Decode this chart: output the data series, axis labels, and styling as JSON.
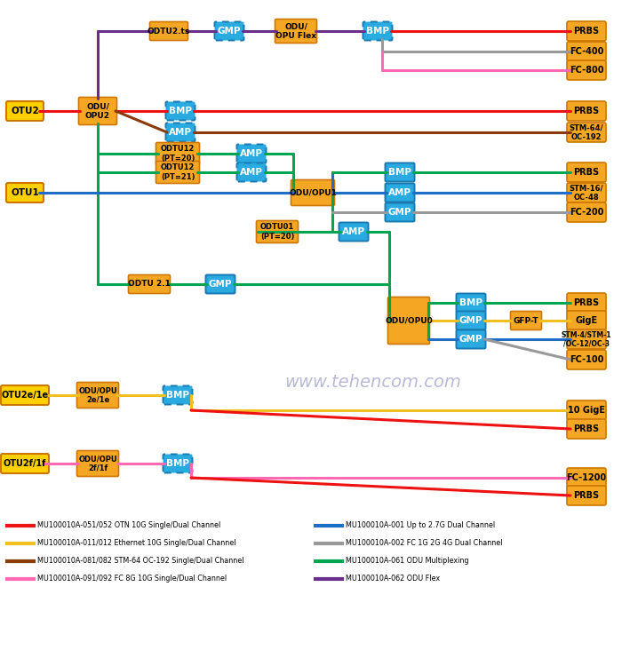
{
  "watermark": "www.tehencom.com",
  "colors": {
    "red": "#EE1111",
    "orange_box": "#F5A623",
    "orange_dark": "#CC7700",
    "blue_box": "#29ABE2",
    "blue_dark": "#1A7AB0",
    "yellow_line": "#F0C020",
    "brown": "#8B3A0A",
    "pink": "#FF69B4",
    "blue_line": "#1E6EC8",
    "gray": "#999999",
    "green": "#00A550",
    "purple": "#6B2D8B",
    "white": "#FFFFFF",
    "black": "#000000"
  },
  "legend": [
    {
      "color": "#EE1111",
      "label": "MU100010A-051/052 OTN 10G Single/Dual Channel"
    },
    {
      "color": "#F0C020",
      "label": "MU100010A-011/012 Ethernet 10G Single/Dual Channel"
    },
    {
      "color": "#8B3A0A",
      "label": "MU100010A-081/082 STM-64 OC-192 Single/Dual Channel"
    },
    {
      "color": "#FF69B4",
      "label": "MU100010A-091/092 FC 8G 10G Single/Dual Channel"
    },
    {
      "color": "#1E6EC8",
      "label": "MU100010A-001 Up to 2.7G Dual Channel"
    },
    {
      "color": "#999999",
      "label": "MU100010A-002 FC 1G 2G 4G Dual Channel"
    },
    {
      "color": "#00A550",
      "label": "MU100010A-061 ODU Multiplexing"
    },
    {
      "color": "#6B2D8B",
      "label": "MU100010A-062 ODU Flex"
    }
  ]
}
